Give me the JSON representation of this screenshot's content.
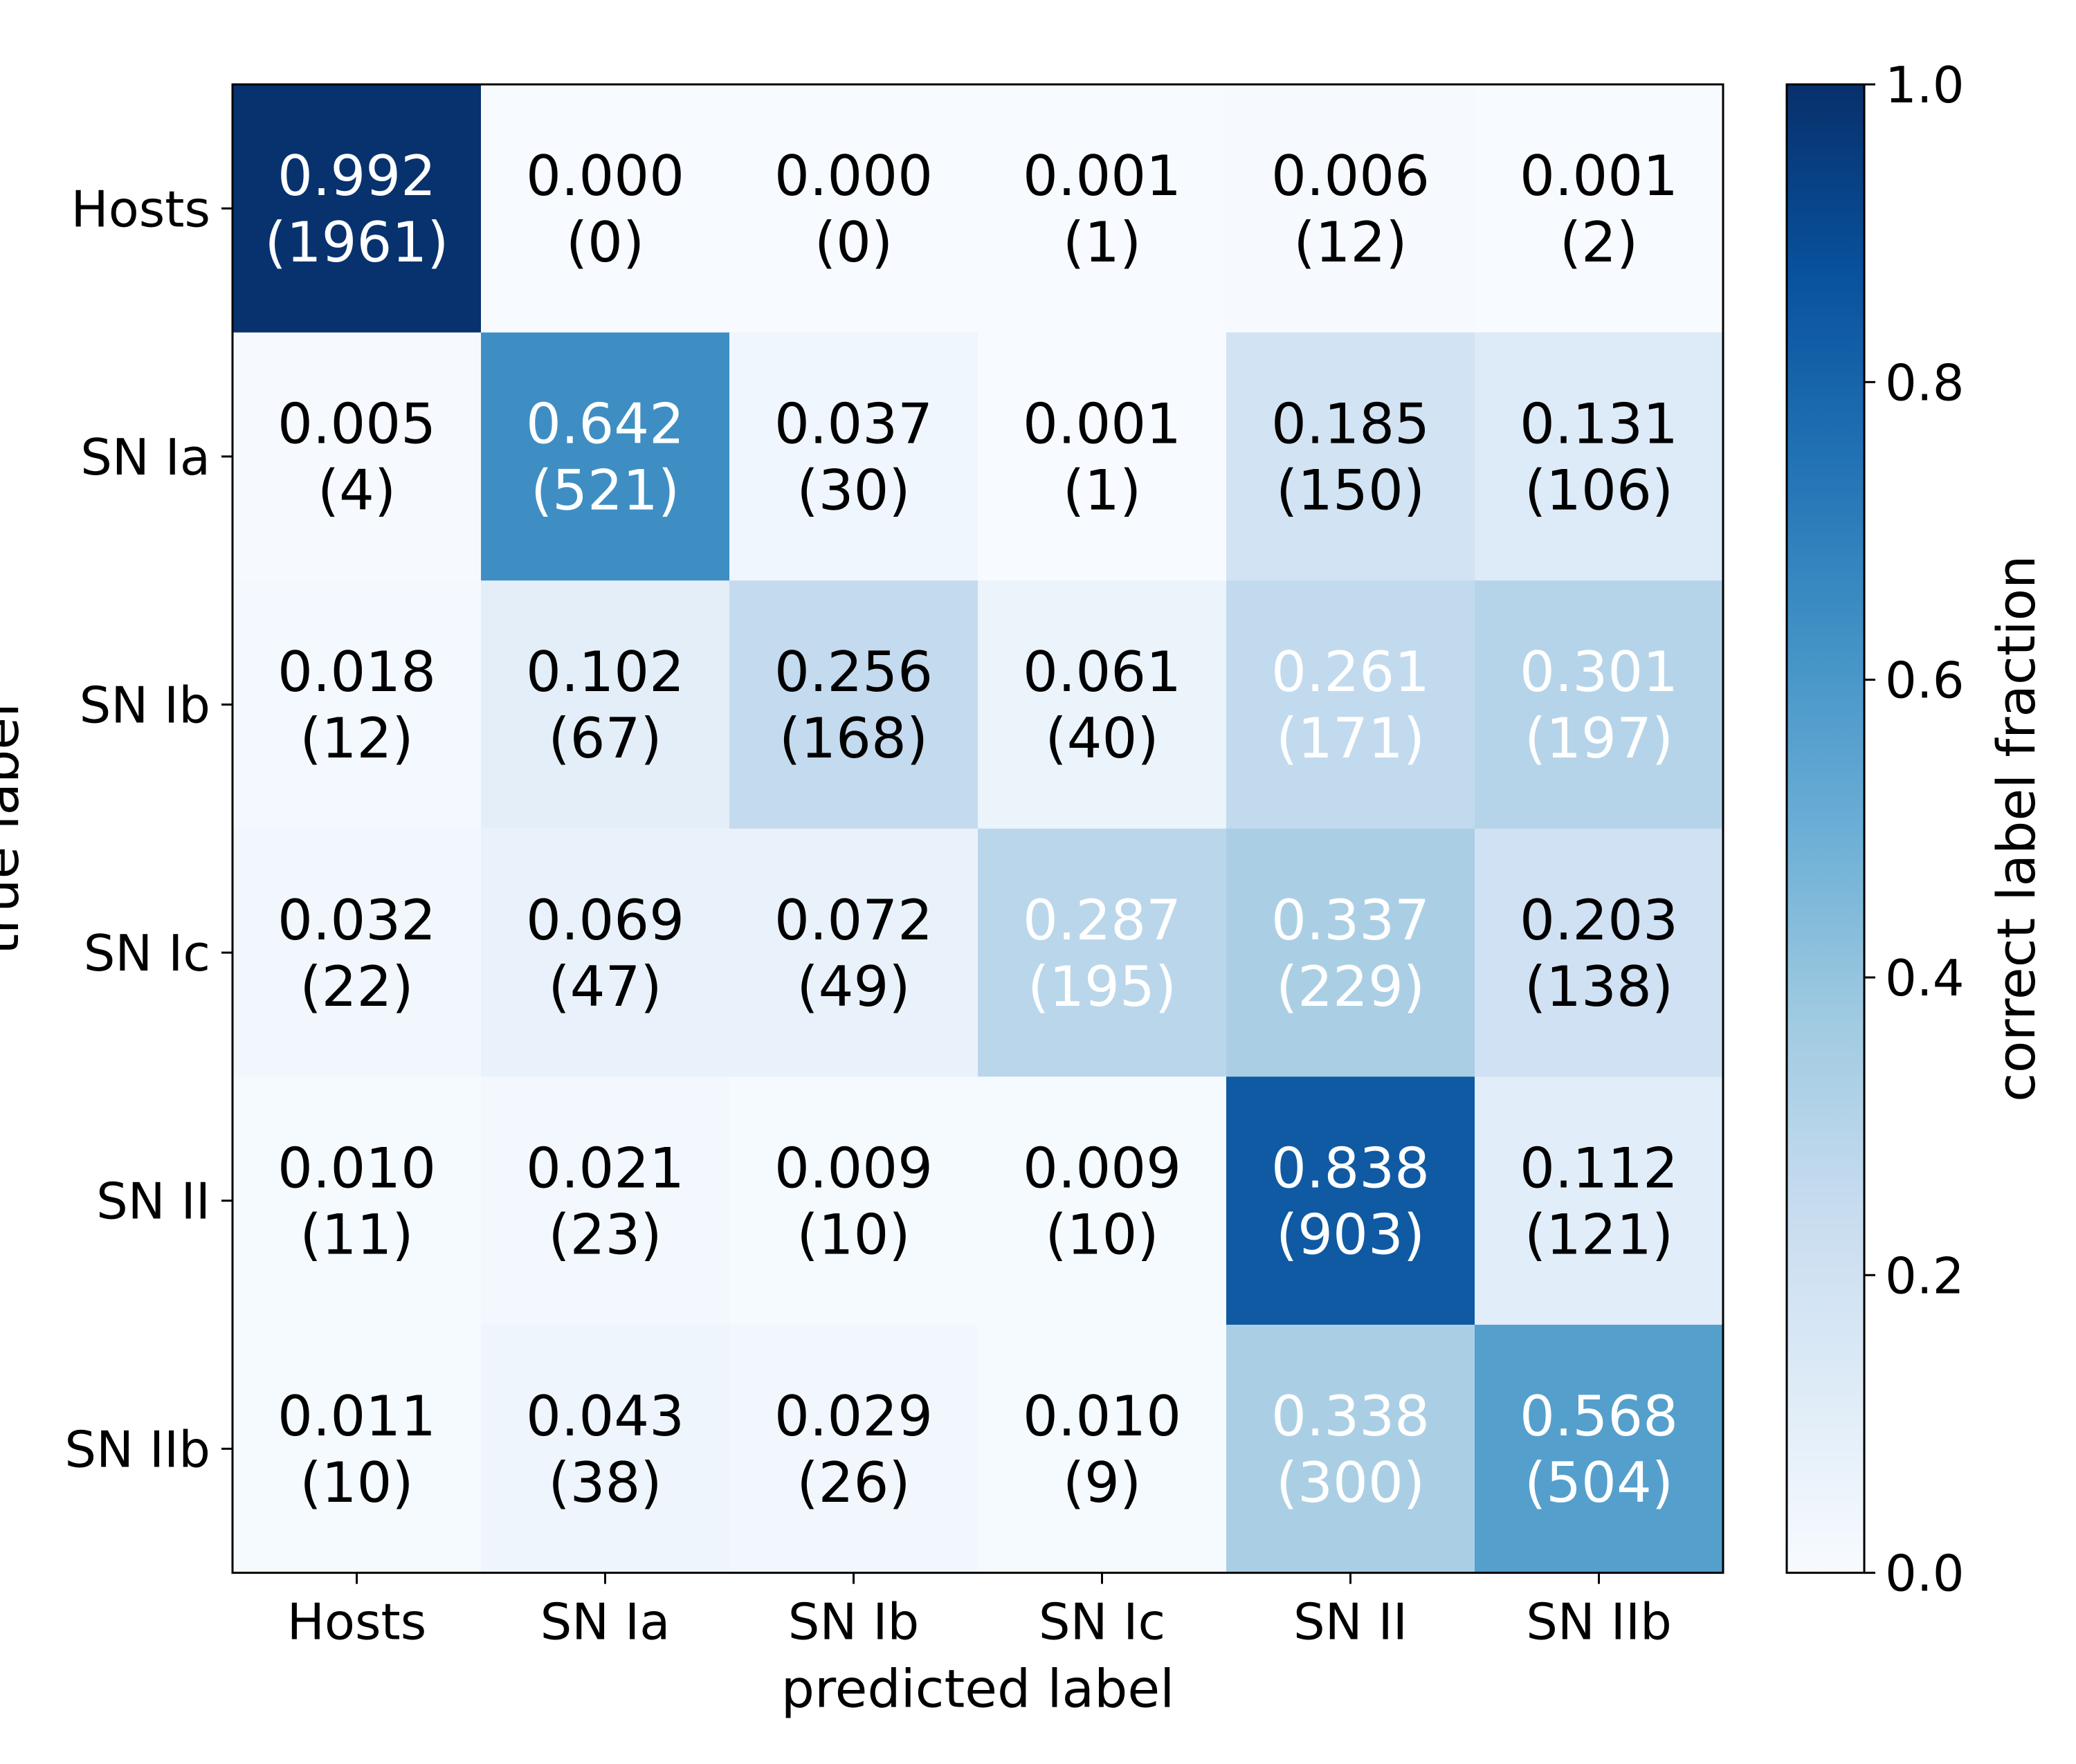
{
  "chart_data": {
    "type": "heatmap",
    "title": "",
    "xlabel": "predicted label",
    "ylabel": "true label",
    "x_categories": [
      "Hosts",
      "SN Ia",
      "SN Ib",
      "SN Ic",
      "SN II",
      "SN IIb"
    ],
    "y_categories": [
      "Hosts",
      "SN Ia",
      "SN Ib",
      "SN Ic",
      "SN II",
      "SN IIb"
    ],
    "fractions": [
      [
        "0.992",
        "0.000",
        "0.000",
        "0.001",
        "0.006",
        "0.001"
      ],
      [
        "0.005",
        "0.642",
        "0.037",
        "0.001",
        "0.185",
        "0.131"
      ],
      [
        "0.018",
        "0.102",
        "0.256",
        "0.061",
        "0.261",
        "0.301"
      ],
      [
        "0.032",
        "0.069",
        "0.072",
        "0.287",
        "0.337",
        "0.203"
      ],
      [
        "0.010",
        "0.021",
        "0.009",
        "0.009",
        "0.838",
        "0.112"
      ],
      [
        "0.011",
        "0.043",
        "0.029",
        "0.010",
        "0.338",
        "0.568"
      ]
    ],
    "counts": [
      [
        "(1961)",
        "(0)",
        "(0)",
        "(1)",
        "(12)",
        "(2)"
      ],
      [
        "(4)",
        "(521)",
        "(30)",
        "(1)",
        "(150)",
        "(106)"
      ],
      [
        "(12)",
        "(67)",
        "(168)",
        "(40)",
        "(171)",
        "(197)"
      ],
      [
        "(22)",
        "(47)",
        "(49)",
        "(195)",
        "(229)",
        "(138)"
      ],
      [
        "(11)",
        "(23)",
        "(10)",
        "(10)",
        "(903)",
        "(121)"
      ],
      [
        "(10)",
        "(38)",
        "(26)",
        "(9)",
        "(300)",
        "(504)"
      ]
    ],
    "color_values": [
      [
        0.992,
        0.0,
        0.0,
        0.001,
        0.006,
        0.001
      ],
      [
        0.005,
        0.642,
        0.037,
        0.001,
        0.185,
        0.131
      ],
      [
        0.018,
        0.102,
        0.256,
        0.061,
        0.261,
        0.301
      ],
      [
        0.032,
        0.069,
        0.072,
        0.287,
        0.337,
        0.203
      ],
      [
        0.01,
        0.021,
        0.009,
        0.009,
        0.838,
        0.112
      ],
      [
        0.011,
        0.043,
        0.029,
        0.01,
        0.338,
        0.568
      ]
    ],
    "white_text": [
      [
        true,
        false,
        false,
        false,
        false,
        false
      ],
      [
        false,
        true,
        false,
        false,
        false,
        false
      ],
      [
        false,
        false,
        false,
        false,
        true,
        true
      ],
      [
        false,
        false,
        false,
        true,
        true,
        false
      ],
      [
        false,
        false,
        false,
        false,
        true,
        false
      ],
      [
        false,
        false,
        false,
        false,
        true,
        true
      ]
    ],
    "colorbar": {
      "label": "correct label fraction",
      "range": [
        0.0,
        1.0
      ],
      "ticks": [
        "0.0",
        "0.2",
        "0.4",
        "0.6",
        "0.8",
        "1.0"
      ],
      "colormap": "Blues"
    },
    "text_colors": {
      "dark": "#000000",
      "light": "#ffffff"
    }
  }
}
